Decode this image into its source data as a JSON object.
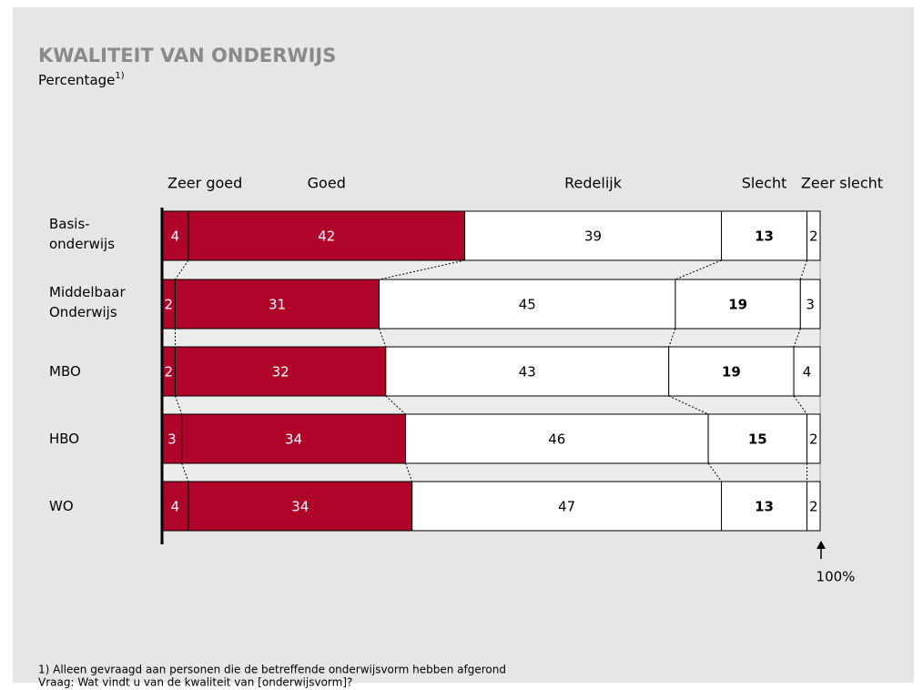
{
  "chart_data": {
    "type": "stacked_bar_horizontal",
    "title": "KWALITEIT VAN ONDERWIJS",
    "subtitle": "Percentage",
    "subtitle_sup": "1)",
    "categories": [
      "Basis- onderwijs",
      "Middelbaar Onderwijs",
      "MBO",
      "HBO",
      "WO"
    ],
    "series": [
      {
        "name": "Zeer goed",
        "color": "#b0052a",
        "label_color": "#ffffff",
        "values": [
          4,
          2,
          2,
          3,
          4
        ]
      },
      {
        "name": "Goed",
        "color": "#b0052a",
        "label_color": "#ffffff",
        "values": [
          42,
          31,
          32,
          34,
          34
        ]
      },
      {
        "name": "Redelijk",
        "color": "#ffffff",
        "label_color": "#000000",
        "values": [
          39,
          45,
          43,
          46,
          47
        ]
      },
      {
        "name": "Slecht",
        "color": "#ffffff",
        "label_color": "#000000",
        "label_bold": true,
        "values": [
          13,
          19,
          19,
          15,
          13
        ]
      },
      {
        "name": "Zeer slecht",
        "color": "#ffffff",
        "label_color": "#000000",
        "values": [
          2,
          3,
          4,
          2,
          2
        ]
      }
    ],
    "xlim": [
      0,
      100
    ],
    "annotation": "100%",
    "footnotes": [
      "1) Alleen gevraagd aan personen die de betreffende onderwijsvorm hebben afgerond",
      "Vraag: Wat vindt u van de kwaliteit van [onderwijsvorm]?"
    ]
  }
}
